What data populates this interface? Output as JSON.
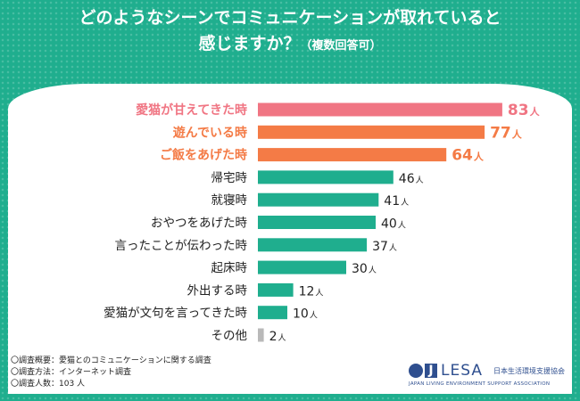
{
  "title": {
    "line1": "どのようなシーンでコミュニケーションが取れていると",
    "line2": "感じますか？",
    "note": "（複数回答可）"
  },
  "chart_data": {
    "type": "bar",
    "orientation": "horizontal",
    "unit": "人",
    "categories": [
      "愛猫が甘えてきた時",
      "遊んでいる時",
      "ご飯をあげた時",
      "帰宅時",
      "就寝時",
      "おやつをあげた時",
      "言ったことが伝わった時",
      "起床時",
      "外出する時",
      "愛猫が文句を言ってきた時",
      "その他"
    ],
    "values": [
      83,
      77,
      64,
      46,
      41,
      40,
      37,
      30,
      12,
      10,
      2
    ],
    "highlight": [
      "pink",
      "orange",
      "orange",
      "normal",
      "normal",
      "normal",
      "normal",
      "normal",
      "normal",
      "normal",
      "gray"
    ],
    "colors": {
      "pink": "#f07583",
      "orange": "#f47b46",
      "normal": "#1fae8e",
      "gray": "#b9b9b9"
    }
  },
  "notes": [
    "〇調査概要：愛猫とのコミュニケーションに関する調査",
    "〇調査方法：インターネット調査",
    "〇調査人数：103 人"
  ],
  "logo": {
    "name": "LESA",
    "japanese": "日本生活環境支援協会",
    "english": "JAPAN LIVING ENVIRONMENT SUPPORT ASSOCIATION"
  }
}
